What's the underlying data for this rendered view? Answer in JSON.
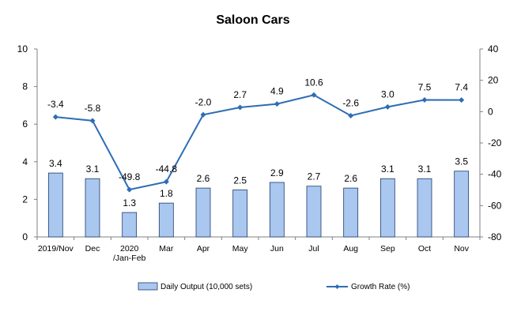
{
  "chart_data": {
    "type": "bar+line",
    "title": "Saloon Cars",
    "categories": [
      "2019/Nov",
      "Dec",
      "2020\n/Jan-Feb",
      "Mar",
      "Apr",
      "May",
      "Jun",
      "Jul",
      "Aug",
      "Sep",
      "Oct",
      "Nov"
    ],
    "series": [
      {
        "name": "Daily Output (10,000 sets)",
        "type": "bar",
        "axis": "left",
        "values": [
          3.4,
          3.1,
          1.3,
          1.8,
          2.6,
          2.5,
          2.9,
          2.7,
          2.6,
          3.1,
          3.1,
          3.5
        ]
      },
      {
        "name": "Growth Rate (%)",
        "type": "line",
        "axis": "right",
        "values": [
          -3.4,
          -5.8,
          -49.8,
          -44.8,
          -2.0,
          2.7,
          4.9,
          10.6,
          -2.6,
          3.0,
          7.5,
          7.4
        ]
      }
    ],
    "left_axis": {
      "ylim": [
        0,
        10
      ],
      "ticks": [
        "0",
        "2",
        "4",
        "6",
        "8",
        "10"
      ]
    },
    "right_axis": {
      "ylim": [
        -80,
        40
      ],
      "ticks": [
        "-80",
        "-60",
        "-40",
        "-20",
        "0",
        "20",
        "40"
      ]
    },
    "grid": false,
    "legend_position": "bottom",
    "colors": {
      "bar_fill": "#a9c7ef",
      "bar_stroke": "#1f3b6e",
      "line": "#2e6db4"
    }
  }
}
